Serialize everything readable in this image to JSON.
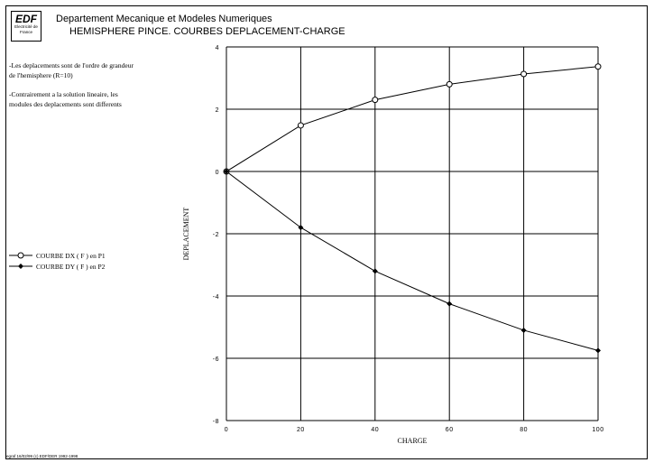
{
  "header": {
    "logo_text": "EDF",
    "logo_subtext": "Electricité de France",
    "title": "Departement Mecanique et Modeles Numeriques",
    "subtitle": "HEMISPHERE PINCE. COURBES DEPLACEMENT-CHARGE"
  },
  "notes": [
    "-Les deplacements sont de l'ordre de grandeur de l'hemisphere (R=10)",
    "-Contrairement a la solution lineaire, les modules des deplacements sont differents"
  ],
  "footer": "egraf 16/02/99 (c) EDF/DER 1992-1998",
  "chart_data": {
    "type": "line",
    "xlabel": "CHARGE",
    "ylabel": "DEPLACEMENT",
    "xlim": [
      0,
      100
    ],
    "ylim": [
      -8,
      4
    ],
    "xticks": [
      0,
      20,
      40,
      60,
      80,
      100
    ],
    "yticks": [
      -8,
      -6,
      -4,
      -2,
      0,
      2,
      4
    ],
    "grid": true,
    "legend_position": "left",
    "x": [
      0,
      20,
      40,
      60,
      80,
      100
    ],
    "series": [
      {
        "name": "COURBE DX ( F ) en P1",
        "marker": "open-circle",
        "values": [
          0,
          1.48,
          2.3,
          2.8,
          3.13,
          3.37
        ]
      },
      {
        "name": "COURBE DY ( F ) en P2",
        "marker": "filled-diamond",
        "values": [
          0,
          -1.8,
          -3.2,
          -4.25,
          -5.1,
          -5.75
        ]
      }
    ]
  }
}
